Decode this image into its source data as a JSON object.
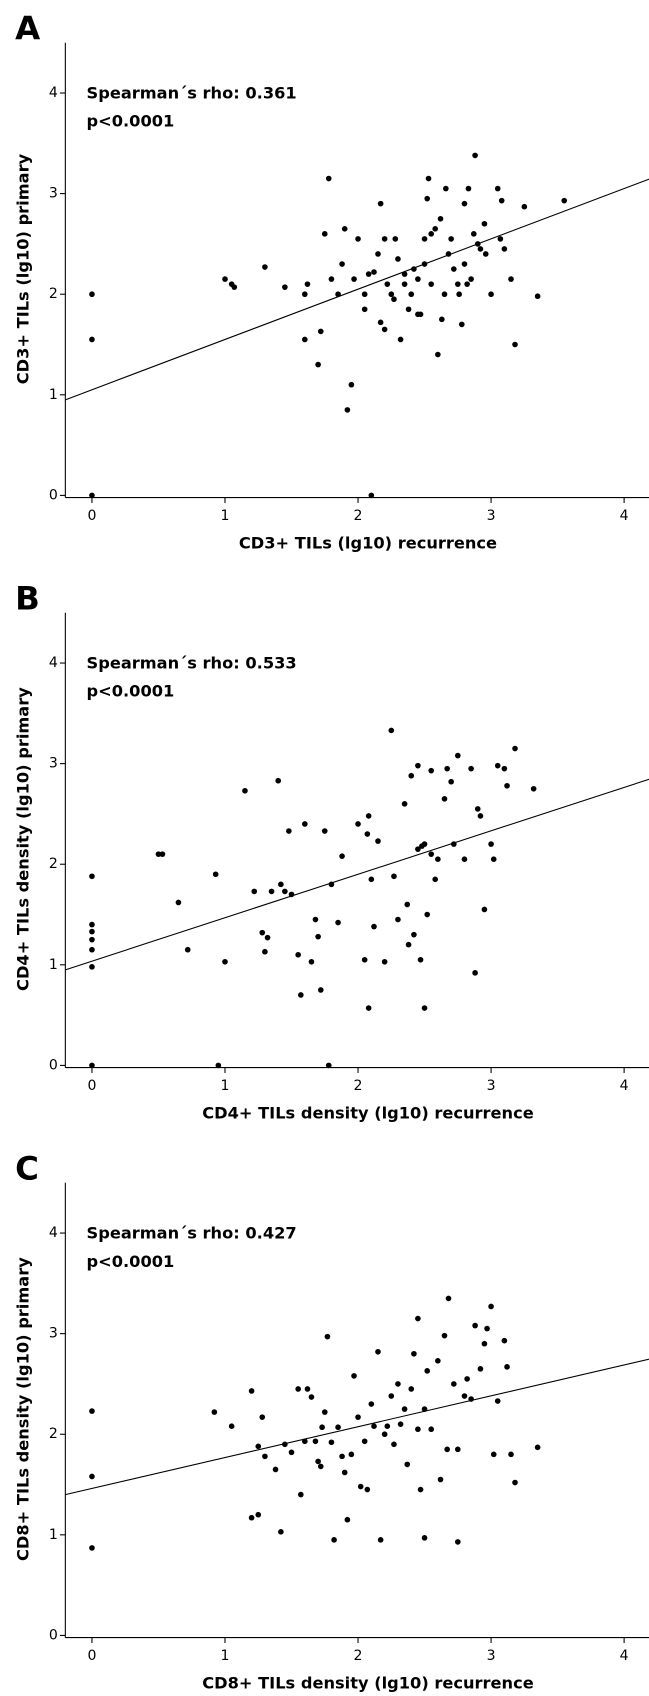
{
  "chart_data": [
    {
      "type": "scatter",
      "panel_label": "A",
      "x_label": "CD3+ TILs (lg10) recurrence",
      "y_label": "CD3+ TILs (lg10) primary",
      "annotations": [
        "Spearman´s rho: 0.361",
        "p<0.0001"
      ],
      "color": "#000000",
      "xlim": [
        -0.2,
        4.2
      ],
      "ylim": [
        0,
        4.5
      ],
      "xticks": [
        0,
        1,
        2,
        3,
        4
      ],
      "yticks": [
        0,
        1,
        2,
        3,
        4
      ],
      "fit_line": {
        "x": [
          -0.2,
          4.2
        ],
        "y": [
          0.95,
          3.15
        ]
      },
      "x": [
        0,
        0,
        0,
        1.0,
        1.05,
        1.07,
        1.3,
        1.45,
        1.6,
        1.62,
        1.6,
        1.7,
        1.72,
        1.75,
        1.78,
        1.8,
        1.85,
        1.88,
        1.9,
        1.92,
        1.95,
        1.97,
        2.0,
        2.05,
        2.05,
        2.08,
        2.1,
        2.12,
        2.15,
        2.17,
        2.17,
        2.2,
        2.2,
        2.22,
        2.25,
        2.27,
        2.28,
        2.3,
        2.32,
        2.35,
        2.35,
        2.38,
        2.4,
        2.42,
        2.45,
        2.45,
        2.47,
        2.5,
        2.5,
        2.52,
        2.53,
        2.55,
        2.55,
        2.58,
        2.6,
        2.62,
        2.63,
        2.65,
        2.66,
        2.68,
        2.7,
        2.72,
        2.75,
        2.76,
        2.78,
        2.8,
        2.8,
        2.82,
        2.83,
        2.85,
        2.87,
        2.88,
        2.9,
        2.92,
        2.95,
        2.96,
        3.0,
        3.05,
        3.07,
        3.08,
        3.1,
        3.15,
        3.18,
        3.25,
        3.35,
        3.55
      ],
      "values": [
        2.0,
        1.55,
        0,
        2.15,
        2.1,
        2.07,
        2.27,
        2.07,
        2.0,
        2.1,
        1.55,
        1.3,
        1.63,
        2.6,
        3.15,
        2.15,
        2.0,
        2.3,
        2.65,
        0.85,
        1.1,
        2.15,
        2.55,
        1.85,
        2.0,
        2.2,
        0,
        2.22,
        2.4,
        2.9,
        1.72,
        1.65,
        2.55,
        2.1,
        2.0,
        1.95,
        2.55,
        2.35,
        1.55,
        2.1,
        2.2,
        1.85,
        2.0,
        2.25,
        1.8,
        2.15,
        1.8,
        2.55,
        2.3,
        2.95,
        3.15,
        2.6,
        2.1,
        2.65,
        1.4,
        2.75,
        1.75,
        2.0,
        3.05,
        2.4,
        2.55,
        2.25,
        2.1,
        2.0,
        1.7,
        2.3,
        2.9,
        2.1,
        3.05,
        2.15,
        2.6,
        3.38,
        2.5,
        2.45,
        2.7,
        2.4,
        2.0,
        3.05,
        2.55,
        2.93,
        2.45,
        2.15,
        1.5,
        2.87,
        1.98,
        2.93
      ]
    },
    {
      "type": "scatter",
      "panel_label": "B",
      "x_label": "CD4+ TILs density (lg10) recurrence",
      "y_label": "CD4+ TILs density (lg10) primary",
      "annotations": [
        "Spearman´s rho: 0.533",
        "p<0.0001"
      ],
      "color": "#000000",
      "xlim": [
        -0.2,
        4.2
      ],
      "ylim": [
        0,
        4.5
      ],
      "xticks": [
        0,
        1,
        2,
        3,
        4
      ],
      "yticks": [
        0,
        1,
        2,
        3,
        4
      ],
      "fit_line": {
        "x": [
          -0.2,
          4.2
        ],
        "y": [
          0.95,
          2.85
        ]
      },
      "x": [
        0,
        0,
        0,
        0,
        0,
        0,
        0,
        0.5,
        0.53,
        0.65,
        0.72,
        0.93,
        0.95,
        1.0,
        1.15,
        1.22,
        1.28,
        1.3,
        1.32,
        1.35,
        1.4,
        1.42,
        1.45,
        1.48,
        1.5,
        1.55,
        1.57,
        1.6,
        1.65,
        1.68,
        1.7,
        1.72,
        1.75,
        1.78,
        1.8,
        1.85,
        1.88,
        2.0,
        2.05,
        2.07,
        2.08,
        2.08,
        2.1,
        2.12,
        2.15,
        2.2,
        2.25,
        2.27,
        2.3,
        2.35,
        2.37,
        2.38,
        2.4,
        2.42,
        2.45,
        2.45,
        2.47,
        2.48,
        2.5,
        2.5,
        2.52,
        2.55,
        2.55,
        2.58,
        2.6,
        2.65,
        2.67,
        2.7,
        2.72,
        2.75,
        2.8,
        2.85,
        2.88,
        2.9,
        2.92,
        2.95,
        3.0,
        3.02,
        3.05,
        3.1,
        3.12,
        3.18,
        3.32
      ],
      "values": [
        1.88,
        1.4,
        1.33,
        1.25,
        1.15,
        0.98,
        0,
        2.1,
        2.1,
        1.62,
        1.15,
        1.9,
        0,
        1.03,
        2.73,
        1.73,
        1.32,
        1.13,
        1.27,
        1.73,
        2.83,
        1.8,
        1.73,
        2.33,
        1.7,
        1.1,
        0.7,
        2.4,
        1.03,
        1.45,
        1.28,
        0.75,
        2.33,
        0,
        1.8,
        1.42,
        2.08,
        2.4,
        1.05,
        2.3,
        2.48,
        0.57,
        1.85,
        1.38,
        2.23,
        1.03,
        3.33,
        1.88,
        1.45,
        2.6,
        1.6,
        1.2,
        2.88,
        1.3,
        2.15,
        2.98,
        1.05,
        2.18,
        0.57,
        2.2,
        1.5,
        2.93,
        2.1,
        1.85,
        2.05,
        2.65,
        2.95,
        2.82,
        2.2,
        3.08,
        2.05,
        2.95,
        0.92,
        2.55,
        2.48,
        1.55,
        2.2,
        2.05,
        2.98,
        2.95,
        2.78,
        3.15,
        2.75
      ]
    },
    {
      "type": "scatter",
      "panel_label": "C",
      "x_label": "CD8+ TILs density (lg10) recurrence",
      "y_label": "CD8+ TILs density (lg10) primary",
      "annotations": [
        "Spearman´s rho: 0.427",
        "p<0.0001"
      ],
      "color": "#000000",
      "xlim": [
        -0.2,
        4.2
      ],
      "ylim": [
        0,
        4.5
      ],
      "xticks": [
        0,
        1,
        2,
        3,
        4
      ],
      "yticks": [
        0,
        1,
        2,
        3,
        4
      ],
      "fit_line": {
        "x": [
          -0.2,
          4.2
        ],
        "y": [
          1.4,
          2.75
        ]
      },
      "x": [
        0,
        0,
        0,
        0.92,
        1.05,
        1.2,
        1.2,
        1.25,
        1.25,
        1.28,
        1.3,
        1.38,
        1.42,
        1.45,
        1.5,
        1.55,
        1.57,
        1.6,
        1.62,
        1.65,
        1.68,
        1.7,
        1.72,
        1.73,
        1.75,
        1.77,
        1.8,
        1.82,
        1.85,
        1.88,
        1.9,
        1.92,
        1.95,
        1.97,
        2.0,
        2.02,
        2.05,
        2.07,
        2.1,
        2.12,
        2.15,
        2.17,
        2.2,
        2.22,
        2.25,
        2.27,
        2.3,
        2.32,
        2.35,
        2.37,
        2.4,
        2.42,
        2.45,
        2.45,
        2.47,
        2.5,
        2.5,
        2.52,
        2.55,
        2.6,
        2.62,
        2.65,
        2.67,
        2.68,
        2.72,
        2.75,
        2.75,
        2.8,
        2.82,
        2.85,
        2.88,
        2.92,
        2.95,
        2.97,
        3.0,
        3.02,
        3.05,
        3.1,
        3.12,
        3.15,
        3.18,
        3.35
      ],
      "values": [
        2.23,
        1.58,
        0.87,
        2.22,
        2.08,
        2.43,
        1.17,
        1.2,
        1.88,
        2.17,
        1.78,
        1.65,
        1.03,
        1.9,
        1.82,
        2.45,
        1.4,
        1.93,
        2.45,
        2.37,
        1.93,
        1.73,
        1.68,
        2.07,
        2.22,
        2.97,
        1.92,
        0.95,
        2.07,
        1.78,
        1.62,
        1.15,
        1.8,
        2.58,
        2.17,
        1.48,
        1.93,
        1.45,
        2.3,
        2.08,
        2.82,
        0.95,
        2.0,
        2.08,
        2.38,
        1.9,
        2.5,
        2.1,
        2.25,
        1.7,
        2.45,
        2.8,
        3.15,
        2.05,
        1.45,
        2.25,
        0.97,
        2.63,
        2.05,
        2.73,
        1.55,
        2.98,
        1.85,
        3.35,
        2.5,
        0.93,
        1.85,
        2.38,
        2.55,
        2.35,
        3.08,
        2.65,
        2.9,
        3.05,
        3.27,
        1.8,
        2.33,
        2.93,
        2.67,
        1.8,
        1.52,
        1.87
      ]
    }
  ]
}
